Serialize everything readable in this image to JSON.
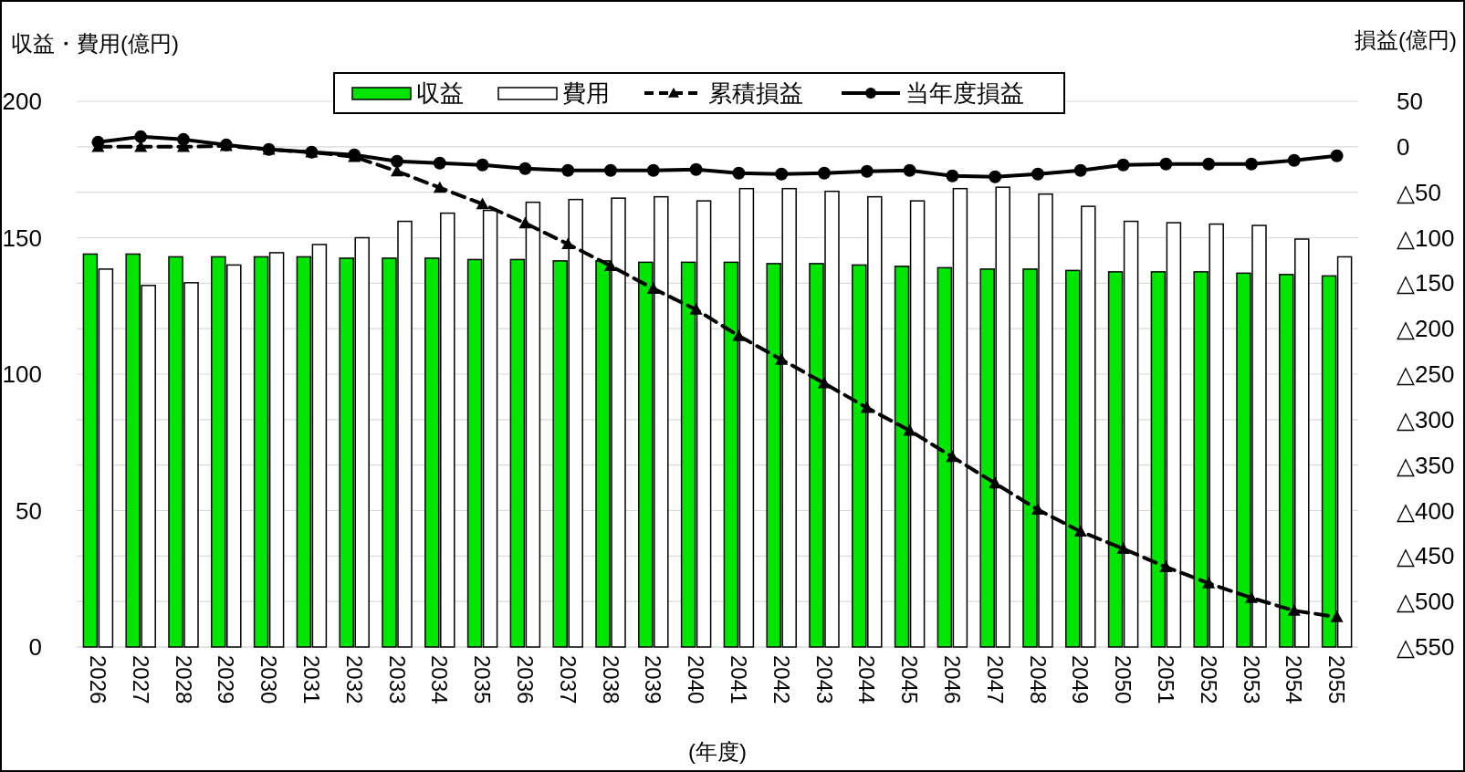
{
  "chart_data": {
    "type": "bar",
    "ylabel": "収益・費用(億円)",
    "y2label": "損益(億円)",
    "xlabel": "(年度)",
    "categories": [
      "2026",
      "2027",
      "2028",
      "2029",
      "2030",
      "2031",
      "2032",
      "2033",
      "2034",
      "2035",
      "2036",
      "2037",
      "2038",
      "2039",
      "2040",
      "2041",
      "2042",
      "2043",
      "2044",
      "2045",
      "2046",
      "2047",
      "2048",
      "2049",
      "2050",
      "2051",
      "2052",
      "2053",
      "2054",
      "2055"
    ],
    "series": [
      {
        "name": "収益",
        "color": "#00e600",
        "values": [
          144,
          144,
          143,
          143,
          143,
          143,
          142.5,
          142.5,
          142.5,
          142,
          142,
          141.5,
          141.5,
          141,
          141,
          141,
          140.5,
          140.5,
          140,
          139.5,
          139,
          138.5,
          138.5,
          138,
          137.5,
          137.5,
          137.5,
          137,
          136.5,
          136
        ]
      },
      {
        "name": "費用",
        "color": "#ffffff",
        "values": [
          138.5,
          132.5,
          133.5,
          140,
          144.5,
          147.5,
          150,
          156,
          159,
          160,
          163,
          164,
          164.5,
          165,
          163.5,
          168,
          168,
          167,
          165,
          163.5,
          168,
          168.5,
          166,
          161.5,
          156,
          155.5,
          155,
          154.5,
          149.5,
          143
        ]
      },
      {
        "name": "累積損益",
        "type": "line",
        "axis": "y2",
        "color": "#000000",
        "marker": "triangle",
        "line_style": "dashed",
        "values": [
          0,
          0,
          0,
          1,
          -3,
          -6,
          -11,
          -27,
          -45,
          -63,
          -84,
          -107,
          -131,
          -156,
          -179,
          -208,
          -234,
          -260,
          -287,
          -312,
          -341,
          -370,
          -399,
          -423,
          -442,
          -462,
          -480,
          -496,
          -510,
          -517
        ]
      },
      {
        "name": "当年度損益",
        "type": "line",
        "axis": "y2",
        "color": "#000000",
        "marker": "circle",
        "line_style": "solid",
        "values": [
          5,
          11,
          8,
          2,
          -3,
          -6,
          -9,
          -16,
          -18,
          -20,
          -24,
          -26,
          -26,
          -26,
          -25,
          -29,
          -30,
          -29,
          -27,
          -26,
          -32,
          -33,
          -30,
          -26,
          -20,
          -19,
          -19,
          -19,
          -15,
          -10
        ]
      }
    ],
    "ylim": [
      0,
      200
    ],
    "yticks": [
      0,
      50,
      100,
      150,
      200
    ],
    "y2lim": [
      -550,
      50
    ],
    "y2ticks": [
      50,
      0,
      {
        "value": -50,
        "label": "△50"
      },
      {
        "value": -100,
        "label": "△100"
      },
      {
        "value": -150,
        "label": "△150"
      },
      {
        "value": -200,
        "label": "△200"
      },
      {
        "value": -250,
        "label": "△250"
      },
      {
        "value": -300,
        "label": "△300"
      },
      {
        "value": -350,
        "label": "△350"
      },
      {
        "value": -400,
        "label": "△400"
      },
      {
        "value": -450,
        "label": "△450"
      },
      {
        "value": -500,
        "label": "△500"
      },
      {
        "value": -550,
        "label": "△550"
      }
    ],
    "grid": true,
    "legend": "top"
  }
}
